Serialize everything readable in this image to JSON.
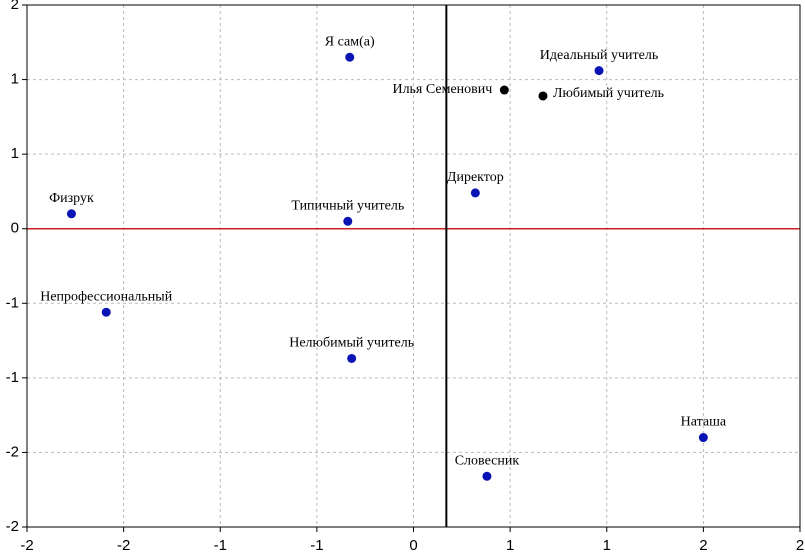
{
  "chart_data": {
    "type": "scatter",
    "labels": [
      "Я сам(а)",
      "Идеальный учитель",
      "Илья Семенович",
      "Любимый учитель",
      "Директор",
      "Физрук",
      "Типичный учитель",
      "Непрофессиональный",
      "Нелюбимый учитель",
      "Наташа",
      "Словесник"
    ],
    "x": [
      -0.33,
      0.96,
      0.47,
      0.67,
      0.32,
      -1.77,
      -0.34,
      -1.59,
      -0.32,
      1.5,
      0.38
    ],
    "values": [
      1.15,
      1.06,
      0.93,
      0.89,
      0.24,
      0.1,
      0.05,
      -0.56,
      -0.87,
      -1.4,
      -1.66
    ],
    "colors": [
      "#0a14b4",
      "#0a14b4",
      "#000000",
      "#000000",
      "#0a14b4",
      "#0a14b4",
      "#0a14b4",
      "#0a14b4",
      "#0a14b4",
      "#0a14b4",
      "#0a14b4"
    ],
    "xlim": [
      -2,
      2
    ],
    "xticks": [
      -2,
      {
        "value": -1.5,
        "label": "-2"
      },
      -1,
      {
        "value": -0.5,
        "label": "-1"
      },
      0,
      {
        "value": 0.5,
        "label": "1"
      },
      1,
      {
        "value": 1.5,
        "label": "2"
      },
      2
    ],
    "ylim": [
      -2,
      1.5
    ],
    "yticks": [
      {
        "value": 1.5,
        "label": "2"
      },
      1,
      {
        "value": 0.5,
        "label": "1"
      },
      0,
      {
        "value": -0.5,
        "label": "-1"
      },
      -1,
      {
        "value": -1.5,
        "label": "-2"
      },
      -2
    ],
    "grid": true,
    "vline": {
      "value": 0.17,
      "color": "#000000"
    },
    "hline": {
      "value": 0,
      "color": "#cc2020"
    }
  }
}
